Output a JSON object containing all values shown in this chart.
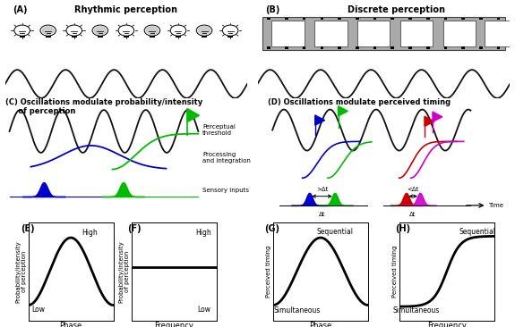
{
  "title_A": "Rhythmic perception",
  "title_B": "Discrete perception",
  "label_A": "(A)",
  "label_B": "(B)",
  "title_C": "(C) Oscillations modulate probability/intensity\n     of perception",
  "title_D": "(D) Oscillations modulate perceived timing",
  "label_E": "(E)",
  "label_F": "(F)",
  "label_G": "(G)",
  "label_H": "(H)",
  "xlabel_E": "Phase",
  "xlabel_F": "Frequency",
  "xlabel_G": "Phase",
  "xlabel_H": "Frequency",
  "ylabel_E": "Probability/intensity\nof perception",
  "ylabel_F": "Probability/intensity\nof perception",
  "ylabel_G": "Perceived timing",
  "ylabel_H": "Perceived timing",
  "high_label": "High",
  "low_label": "Low",
  "sequential_label": "Sequential",
  "simultaneous_label": "Simultaneous",
  "perceptual_threshold": "Perceptual\nthreshold",
  "processing_integration": "Processing\nand integration",
  "sensory_inputs": "Sensory inputs",
  "time_label": "Time",
  "delta_t": "Δt",
  "gt_delta_t": ">Δt",
  "lt_delta_t": "<Δt",
  "wave_color": "#111111",
  "blue_color": "#0000cc",
  "green_color": "#00bb00",
  "red_color": "#cc0000",
  "purple_color": "#cc00cc",
  "film_gray": "#aaaaaa",
  "film_white": "#ffffff"
}
